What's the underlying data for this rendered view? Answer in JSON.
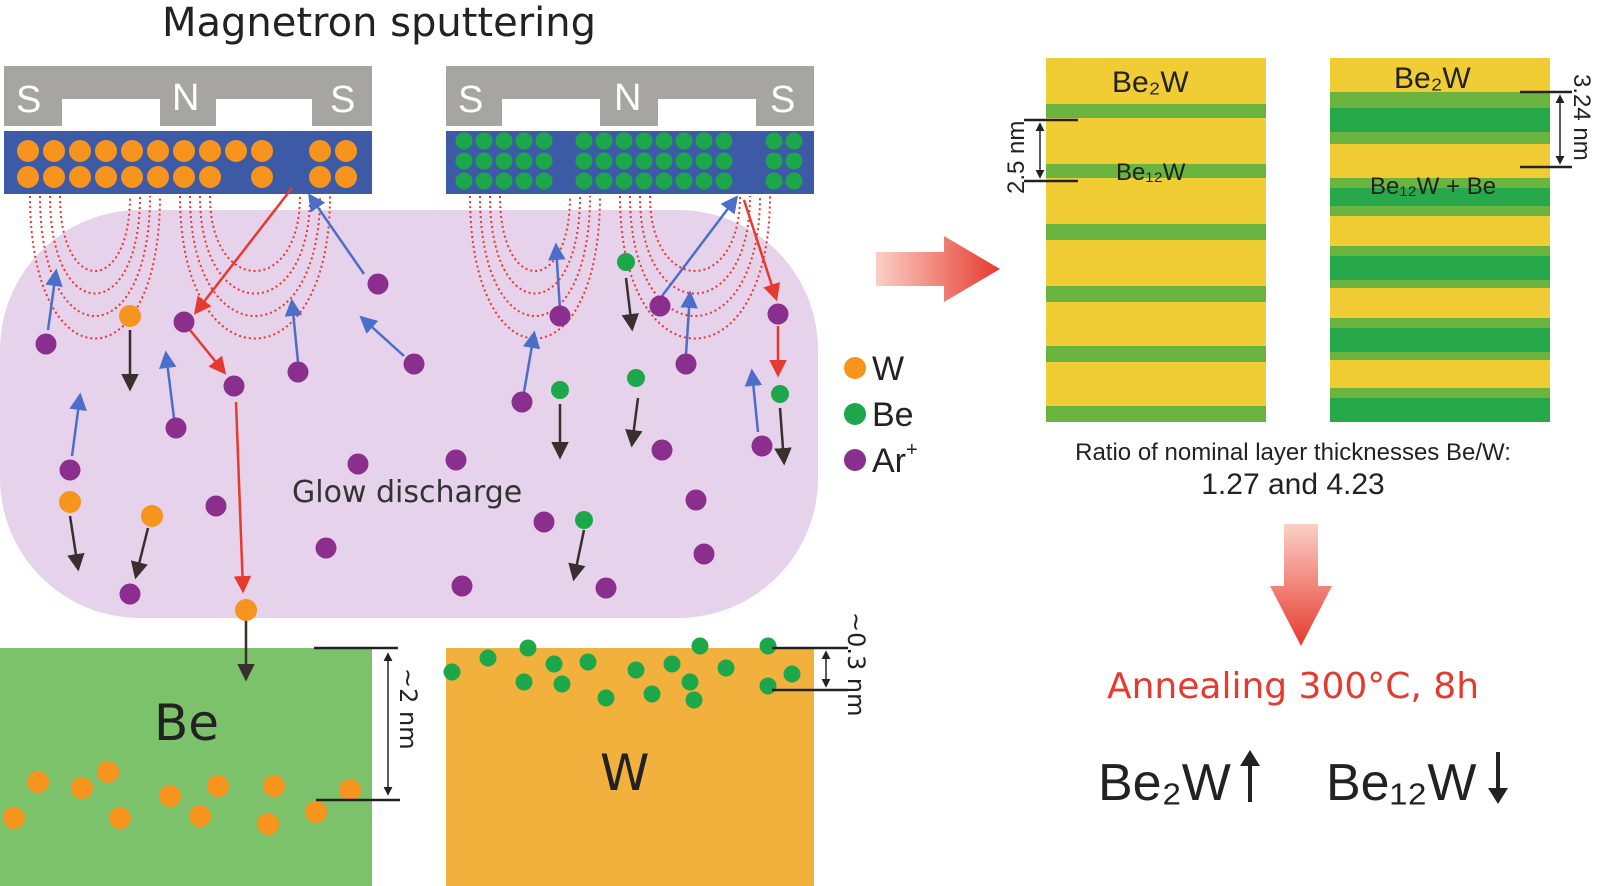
{
  "title": "Magnetron sputtering",
  "magnet_labels": {
    "left": "S",
    "center": "N",
    "right": "S"
  },
  "plasma_label": "Glow discharge",
  "legend": [
    {
      "label": "W",
      "color": "#f7941d"
    },
    {
      "label": "Be",
      "color": "#1ca84a"
    },
    {
      "label": "Ar",
      "superscript": "+",
      "color": "#8b2f8f"
    }
  ],
  "substrates": {
    "left": {
      "label": "Be",
      "depth": "~2 nm"
    },
    "right": {
      "label": "W",
      "depth": "~0.3 nm"
    }
  },
  "multilayers": {
    "left": {
      "top_label": "Be₂W",
      "inner_label": "Be₁₂W",
      "period": "2.5 nm"
    },
    "right": {
      "top_label": "Be₂W",
      "inner_label": "Be₁₂W + Be",
      "period": "3.24 nm"
    }
  },
  "ratio_caption": "Ratio of nominal layer thicknesses Be/W:",
  "ratio_values": "1.27 and 4.23",
  "annealing": "Annealing 300°C, 8h",
  "results": {
    "increase": "Be₂W",
    "decrease": "Be₁₂W"
  },
  "colors": {
    "magnet": "#a7a4a4",
    "target": "#3c5aa6",
    "plasma": "#e6d2ea",
    "be_substrate": "#7cc26a",
    "w_substrate": "#f2b03c",
    "yellow_layer": "#f1cd35",
    "green_layer": "#6ab43f",
    "dark_green_layer": "#27a84a",
    "red": "#e63a2e",
    "blue_arrow": "#4a6ec9",
    "dark_arrow": "#3a2f2f",
    "field_line": "#e8352f"
  }
}
